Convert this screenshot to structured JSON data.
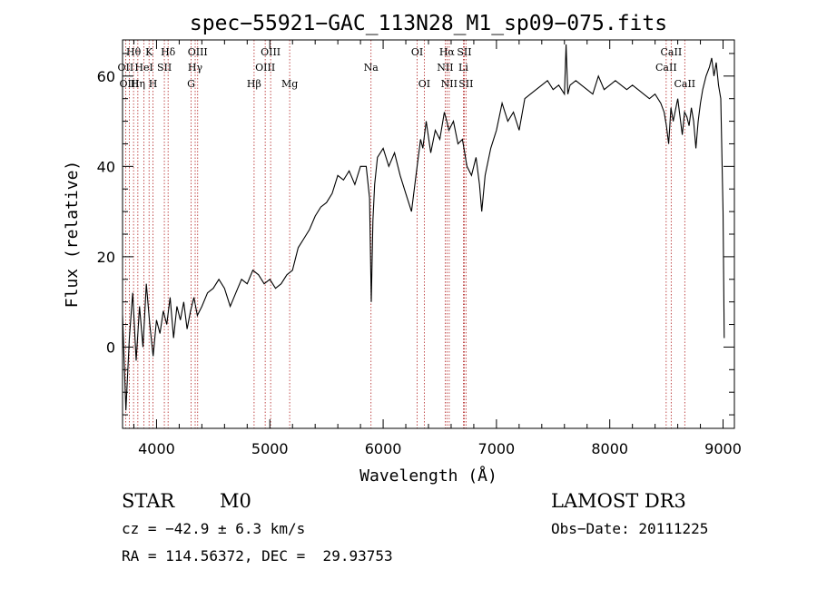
{
  "chart_data": {
    "type": "line",
    "title": "spec−55921−GAC_113N28_M1_sp09−075.fits",
    "xlabel": "Wavelength (Å)",
    "ylabel": "Flux (relative)",
    "xlim": [
      3700,
      9100
    ],
    "ylim": [
      -18,
      68
    ],
    "x_ticks": [
      4000,
      5000,
      6000,
      7000,
      8000,
      9000
    ],
    "y_ticks": [
      0,
      20,
      40,
      60
    ],
    "x_tick_labels": [
      "4000",
      "5000",
      "6000",
      "7000",
      "8000",
      "9000"
    ],
    "y_tick_labels": [
      "0",
      "20",
      "40",
      "60"
    ],
    "series": [
      {
        "name": "spectrum",
        "x": [
          3700,
          3730,
          3760,
          3790,
          3820,
          3850,
          3880,
          3910,
          3940,
          3970,
          4000,
          4030,
          4060,
          4090,
          4120,
          4150,
          4180,
          4210,
          4240,
          4270,
          4300,
          4330,
          4360,
          4400,
          4450,
          4500,
          4550,
          4600,
          4650,
          4700,
          4750,
          4800,
          4850,
          4900,
          4950,
          5000,
          5050,
          5100,
          5150,
          5200,
          5250,
          5300,
          5350,
          5400,
          5450,
          5500,
          5550,
          5600,
          5650,
          5700,
          5750,
          5800,
          5850,
          5880,
          5895,
          5910,
          5925,
          5950,
          6000,
          6050,
          6100,
          6150,
          6200,
          6250,
          6300,
          6330,
          6350,
          6380,
          6420,
          6460,
          6500,
          6540,
          6562,
          6580,
          6620,
          6660,
          6700,
          6740,
          6780,
          6820,
          6850,
          6870,
          6900,
          6950,
          7000,
          7050,
          7100,
          7150,
          7200,
          7250,
          7300,
          7350,
          7400,
          7450,
          7500,
          7550,
          7600,
          7615,
          7630,
          7650,
          7700,
          7750,
          7800,
          7850,
          7900,
          7950,
          8000,
          8050,
          8100,
          8150,
          8200,
          8250,
          8300,
          8350,
          8400,
          8450,
          8480,
          8500,
          8520,
          8540,
          8560,
          8600,
          8640,
          8660,
          8680,
          8700,
          8720,
          8740,
          8760,
          8780,
          8800,
          8820,
          8850,
          8880,
          8900,
          8920,
          8940,
          8960,
          8980,
          9000,
          9010
        ],
        "values": [
          7,
          -14,
          2,
          12,
          -3,
          9,
          0,
          14,
          5,
          -2,
          6,
          3,
          8,
          5,
          11,
          2,
          9,
          6,
          10,
          4,
          8,
          11,
          7,
          9,
          12,
          13,
          15,
          13,
          9,
          12,
          15,
          14,
          17,
          16,
          14,
          15,
          13,
          14,
          16,
          17,
          22,
          24,
          26,
          29,
          31,
          32,
          34,
          38,
          37,
          39,
          36,
          40,
          40,
          33,
          10,
          28,
          36,
          42,
          44,
          40,
          43,
          38,
          34,
          30,
          40,
          46,
          44,
          50,
          43,
          48,
          46,
          52,
          50,
          48,
          50,
          45,
          46,
          40,
          38,
          42,
          36,
          30,
          38,
          44,
          48,
          54,
          50,
          52,
          48,
          55,
          56,
          57,
          58,
          59,
          57,
          58,
          56,
          67,
          56,
          58,
          59,
          58,
          57,
          56,
          60,
          57,
          58,
          59,
          58,
          57,
          58,
          57,
          56,
          55,
          56,
          54,
          52,
          49,
          45,
          53,
          50,
          55,
          47,
          52,
          51,
          49,
          53,
          50,
          44,
          50,
          54,
          57,
          60,
          62,
          64,
          60,
          63,
          58,
          55,
          30,
          2
        ]
      }
    ],
    "lines": [
      {
        "label": "Hθ",
        "x": 3797,
        "row": 0
      },
      {
        "label": "OII",
        "x": 3727,
        "row": 1
      },
      {
        "label": "OIII",
        "x": 3760,
        "row": 2
      },
      {
        "label": "Hη",
        "x": 3835,
        "row": 2
      },
      {
        "label": "HeI",
        "x": 3889,
        "row": 1
      },
      {
        "label": "K",
        "x": 3934,
        "row": 0
      },
      {
        "label": "H",
        "x": 3969,
        "row": 2
      },
      {
        "label": "SII",
        "x": 4069,
        "row": 1
      },
      {
        "label": "Hδ",
        "x": 4102,
        "row": 0
      },
      {
        "label": "OIII",
        "x": 4363,
        "row": 0
      },
      {
        "label": "Hγ",
        "x": 4341,
        "row": 1
      },
      {
        "label": "G",
        "x": 4305,
        "row": 2
      },
      {
        "label": "Hβ",
        "x": 4861,
        "row": 2
      },
      {
        "label": "OIII",
        "x": 5007,
        "row": 0
      },
      {
        "label": "OIII",
        "x": 4959,
        "row": 1
      },
      {
        "label": "Mg",
        "x": 5175,
        "row": 2
      },
      {
        "label": "Na",
        "x": 5893,
        "row": 1
      },
      {
        "label": "OI",
        "x": 6300,
        "row": 0
      },
      {
        "label": "OI",
        "x": 6363,
        "row": 2
      },
      {
        "label": "Hα",
        "x": 6563,
        "row": 0
      },
      {
        "label": "NII",
        "x": 6548,
        "row": 1
      },
      {
        "label": "NII",
        "x": 6583,
        "row": 2
      },
      {
        "label": "SII",
        "x": 6716,
        "row": 0
      },
      {
        "label": "SII",
        "x": 6731,
        "row": 2
      },
      {
        "label": "Li",
        "x": 6708,
        "row": 1
      },
      {
        "label": "CaII",
        "x": 8542,
        "row": 0
      },
      {
        "label": "CaII",
        "x": 8498,
        "row": 1
      },
      {
        "label": "CaII",
        "x": 8662,
        "row": 2
      }
    ]
  },
  "info": {
    "object_class": "STAR",
    "subclass": "M0",
    "survey": "LAMOST DR3",
    "cz": "cz = −42.9 ± 6.3 km/s",
    "obs_date": "Obs−Date: 20111225",
    "coords": "RA = 114.56372, DEC =  29.93753"
  }
}
